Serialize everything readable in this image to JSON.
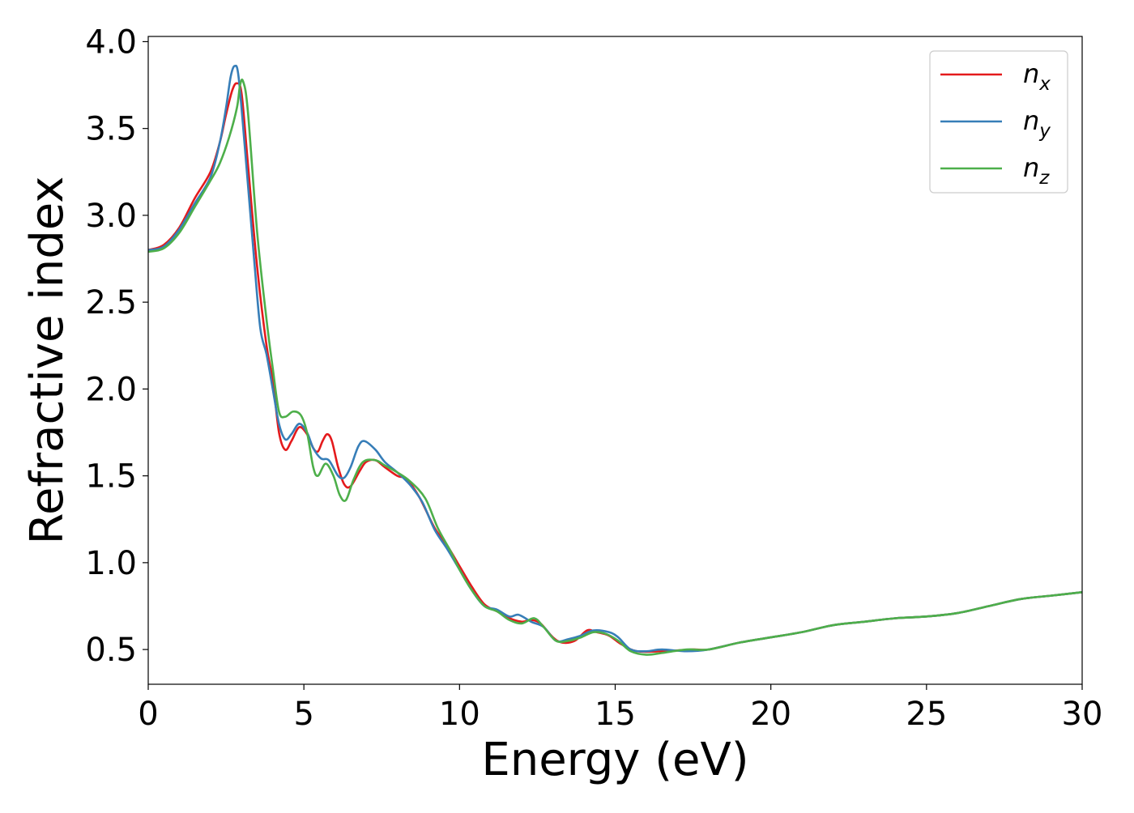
{
  "chart_data": {
    "type": "line",
    "title": "",
    "xlabel": "Energy (eV)",
    "ylabel": "Refractive index",
    "xlim": [
      0,
      30
    ],
    "ylim": [
      0.3,
      4.03
    ],
    "xticks": [
      0,
      5,
      10,
      15,
      20,
      25,
      30
    ],
    "xtick_labels": [
      "0",
      "5",
      "10",
      "15",
      "20",
      "25",
      "30"
    ],
    "yticks": [
      0.5,
      1.0,
      1.5,
      2.0,
      2.5,
      3.0,
      3.5,
      4.0
    ],
    "ytick_labels": [
      "0.5",
      "1.0",
      "1.5",
      "2.0",
      "2.5",
      "3.0",
      "3.5",
      "4.0"
    ],
    "grid": false,
    "legend_position": "top-right",
    "series": [
      {
        "name": "n_x",
        "label_base": "n",
        "label_sub": "x",
        "color": "#e41a1c",
        "points": [
          [
            0,
            2.8
          ],
          [
            0.5,
            2.83
          ],
          [
            1,
            2.93
          ],
          [
            1.5,
            3.1
          ],
          [
            2,
            3.25
          ],
          [
            2.3,
            3.42
          ],
          [
            2.5,
            3.58
          ],
          [
            2.7,
            3.72
          ],
          [
            2.85,
            3.76
          ],
          [
            3,
            3.7
          ],
          [
            3.2,
            3.3
          ],
          [
            3.5,
            2.7
          ],
          [
            3.8,
            2.25
          ],
          [
            4,
            2.05
          ],
          [
            4.2,
            1.75
          ],
          [
            4.4,
            1.65
          ],
          [
            4.6,
            1.7
          ],
          [
            4.85,
            1.78
          ],
          [
            5.1,
            1.74
          ],
          [
            5.3,
            1.66
          ],
          [
            5.45,
            1.64
          ],
          [
            5.6,
            1.7
          ],
          [
            5.75,
            1.74
          ],
          [
            5.9,
            1.7
          ],
          [
            6.1,
            1.55
          ],
          [
            6.3,
            1.45
          ],
          [
            6.5,
            1.44
          ],
          [
            6.8,
            1.53
          ],
          [
            7,
            1.58
          ],
          [
            7.3,
            1.59
          ],
          [
            7.6,
            1.55
          ],
          [
            8,
            1.5
          ],
          [
            8.3,
            1.48
          ],
          [
            8.7,
            1.38
          ],
          [
            9.2,
            1.2
          ],
          [
            9.6,
            1.1
          ],
          [
            10,
            0.98
          ],
          [
            10.4,
            0.86
          ],
          [
            10.8,
            0.76
          ],
          [
            11.2,
            0.72
          ],
          [
            11.6,
            0.68
          ],
          [
            12,
            0.66
          ],
          [
            12.3,
            0.67
          ],
          [
            12.6,
            0.65
          ],
          [
            13,
            0.57
          ],
          [
            13.3,
            0.54
          ],
          [
            13.7,
            0.55
          ],
          [
            14.1,
            0.61
          ],
          [
            14.4,
            0.6
          ],
          [
            14.8,
            0.58
          ],
          [
            15.2,
            0.53
          ],
          [
            15.7,
            0.49
          ],
          [
            16.5,
            0.49
          ],
          [
            17.5,
            0.5
          ],
          [
            18,
            0.5
          ],
          [
            19,
            0.54
          ],
          [
            20,
            0.57
          ],
          [
            21,
            0.6
          ],
          [
            22,
            0.64
          ],
          [
            23,
            0.66
          ],
          [
            24,
            0.68
          ],
          [
            25,
            0.69
          ],
          [
            26,
            0.71
          ],
          [
            27,
            0.75
          ],
          [
            28,
            0.79
          ],
          [
            29,
            0.81
          ],
          [
            30,
            0.83
          ]
        ]
      },
      {
        "name": "n_y",
        "label_base": "n",
        "label_sub": "y",
        "color": "#377eb8",
        "points": [
          [
            0,
            2.8
          ],
          [
            0.5,
            2.82
          ],
          [
            1,
            2.92
          ],
          [
            1.5,
            3.07
          ],
          [
            2,
            3.22
          ],
          [
            2.3,
            3.42
          ],
          [
            2.5,
            3.62
          ],
          [
            2.65,
            3.8
          ],
          [
            2.78,
            3.86
          ],
          [
            2.9,
            3.8
          ],
          [
            3.1,
            3.4
          ],
          [
            3.4,
            2.75
          ],
          [
            3.6,
            2.35
          ],
          [
            3.8,
            2.2
          ],
          [
            4,
            2.0
          ],
          [
            4.2,
            1.8
          ],
          [
            4.4,
            1.71
          ],
          [
            4.6,
            1.74
          ],
          [
            4.85,
            1.8
          ],
          [
            5.1,
            1.75
          ],
          [
            5.3,
            1.66
          ],
          [
            5.55,
            1.6
          ],
          [
            5.8,
            1.59
          ],
          [
            6.1,
            1.5
          ],
          [
            6.3,
            1.49
          ],
          [
            6.5,
            1.55
          ],
          [
            6.75,
            1.67
          ],
          [
            6.95,
            1.7
          ],
          [
            7.3,
            1.65
          ],
          [
            7.6,
            1.58
          ],
          [
            8,
            1.52
          ],
          [
            8.4,
            1.45
          ],
          [
            8.8,
            1.35
          ],
          [
            9.2,
            1.19
          ],
          [
            9.6,
            1.08
          ],
          [
            10,
            0.96
          ],
          [
            10.4,
            0.84
          ],
          [
            10.8,
            0.75
          ],
          [
            11.2,
            0.73
          ],
          [
            11.6,
            0.69
          ],
          [
            11.9,
            0.7
          ],
          [
            12.3,
            0.66
          ],
          [
            12.7,
            0.63
          ],
          [
            13.1,
            0.55
          ],
          [
            13.5,
            0.56
          ],
          [
            13.9,
            0.58
          ],
          [
            14.3,
            0.61
          ],
          [
            14.8,
            0.6
          ],
          [
            15.1,
            0.57
          ],
          [
            15.5,
            0.5
          ],
          [
            16,
            0.49
          ],
          [
            16.5,
            0.5
          ],
          [
            17.3,
            0.49
          ],
          [
            18,
            0.5
          ],
          [
            19,
            0.54
          ],
          [
            20,
            0.57
          ],
          [
            21,
            0.6
          ],
          [
            22,
            0.64
          ],
          [
            23,
            0.66
          ],
          [
            24,
            0.68
          ],
          [
            25,
            0.69
          ],
          [
            26,
            0.71
          ],
          [
            27,
            0.75
          ],
          [
            28,
            0.79
          ],
          [
            29,
            0.81
          ],
          [
            30,
            0.83
          ]
        ]
      },
      {
        "name": "n_z",
        "label_base": "n",
        "label_sub": "z",
        "color": "#4daf4a",
        "points": [
          [
            0,
            2.79
          ],
          [
            0.5,
            2.81
          ],
          [
            1,
            2.9
          ],
          [
            1.5,
            3.05
          ],
          [
            2,
            3.2
          ],
          [
            2.3,
            3.3
          ],
          [
            2.6,
            3.45
          ],
          [
            2.85,
            3.62
          ],
          [
            2.95,
            3.75
          ],
          [
            3.05,
            3.77
          ],
          [
            3.2,
            3.6
          ],
          [
            3.5,
            2.9
          ],
          [
            3.8,
            2.4
          ],
          [
            4,
            2.12
          ],
          [
            4.2,
            1.87
          ],
          [
            4.4,
            1.84
          ],
          [
            4.65,
            1.87
          ],
          [
            4.9,
            1.85
          ],
          [
            5.1,
            1.75
          ],
          [
            5.3,
            1.55
          ],
          [
            5.45,
            1.5
          ],
          [
            5.7,
            1.57
          ],
          [
            5.95,
            1.5
          ],
          [
            6.15,
            1.39
          ],
          [
            6.35,
            1.36
          ],
          [
            6.6,
            1.48
          ],
          [
            6.9,
            1.58
          ],
          [
            7.3,
            1.59
          ],
          [
            7.6,
            1.56
          ],
          [
            8,
            1.52
          ],
          [
            8.4,
            1.47
          ],
          [
            8.9,
            1.37
          ],
          [
            9.3,
            1.2
          ],
          [
            9.7,
            1.07
          ],
          [
            10,
            0.96
          ],
          [
            10.4,
            0.84
          ],
          [
            10.8,
            0.75
          ],
          [
            11.2,
            0.72
          ],
          [
            11.6,
            0.67
          ],
          [
            12,
            0.65
          ],
          [
            12.4,
            0.68
          ],
          [
            12.7,
            0.63
          ],
          [
            13.1,
            0.55
          ],
          [
            13.5,
            0.55
          ],
          [
            13.9,
            0.57
          ],
          [
            14.3,
            0.6
          ],
          [
            14.7,
            0.59
          ],
          [
            15.1,
            0.55
          ],
          [
            15.5,
            0.49
          ],
          [
            16,
            0.47
          ],
          [
            16.5,
            0.48
          ],
          [
            17.3,
            0.5
          ],
          [
            18,
            0.5
          ],
          [
            19,
            0.54
          ],
          [
            20,
            0.57
          ],
          [
            21,
            0.6
          ],
          [
            22,
            0.64
          ],
          [
            23,
            0.66
          ],
          [
            24,
            0.68
          ],
          [
            25,
            0.69
          ],
          [
            26,
            0.71
          ],
          [
            27,
            0.75
          ],
          [
            28,
            0.79
          ],
          [
            29,
            0.81
          ],
          [
            30,
            0.83
          ]
        ]
      }
    ]
  }
}
